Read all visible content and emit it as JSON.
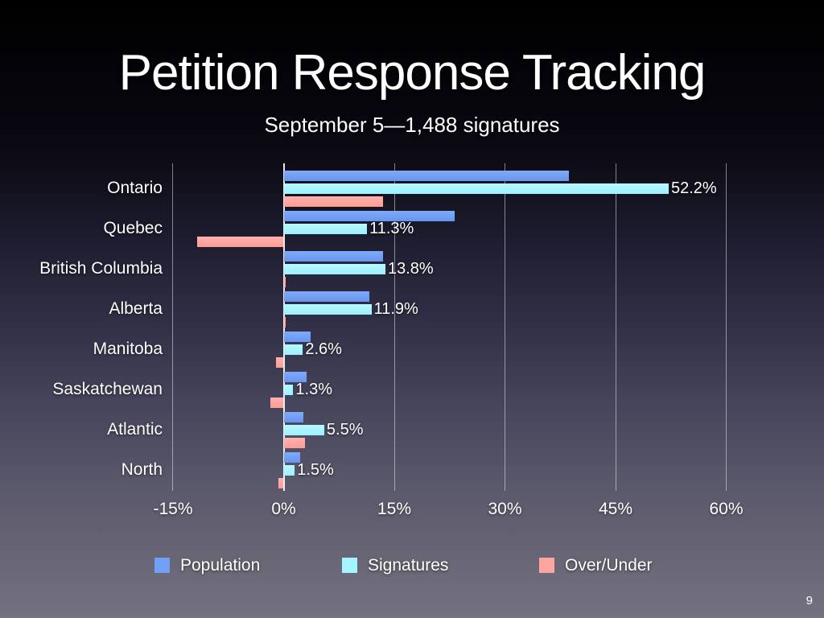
{
  "slide": {
    "title": "Petition Response Tracking",
    "subtitle": "September 5—1,488 signatures",
    "page_number": "9"
  },
  "chart_data": {
    "type": "bar",
    "orientation": "horizontal",
    "title": "Petition Response Tracking",
    "subtitle": "September 5—1,488 signatures",
    "categories": [
      "Ontario",
      "Quebec",
      "British Columbia",
      "Alberta",
      "Manitoba",
      "Saskatchewan",
      "Atlantic",
      "North"
    ],
    "series": [
      {
        "name": "Population",
        "color_top": "#7FAAF8",
        "color_bottom": "#6896EF",
        "legend_color": "#6FA0F6",
        "values": [
          38.7,
          23.2,
          13.5,
          11.6,
          3.6,
          3.1,
          2.7,
          2.2
        ]
      },
      {
        "name": "Signatures",
        "color_top": "#B6F9FF",
        "color_bottom": "#9DEFFD",
        "legend_color": "#A5F4FF",
        "values": [
          52.2,
          11.3,
          13.8,
          11.9,
          2.6,
          1.3,
          5.5,
          1.5
        ],
        "data_labels": [
          "52.2%",
          "11.3%",
          "13.8%",
          "11.9%",
          "2.6%",
          "1.3%",
          "5.5%",
          "1.5%"
        ]
      },
      {
        "name": "Over/Under",
        "color_top": "#FFB1AC",
        "color_bottom": "#FF9B96",
        "legend_color": "#FFA49F",
        "values": [
          13.5,
          -11.7,
          0.3,
          0.3,
          -1.0,
          -1.8,
          2.9,
          -0.7
        ]
      }
    ],
    "x_ticks": [
      {
        "value": -15,
        "label": "-15%"
      },
      {
        "value": 0,
        "label": "0%"
      },
      {
        "value": 15,
        "label": "15%"
      },
      {
        "value": 30,
        "label": "30%"
      },
      {
        "value": 45,
        "label": "45%"
      },
      {
        "value": 60,
        "label": "60%"
      }
    ],
    "xlim": [
      -15,
      60
    ],
    "grid": "vertical-only",
    "legend_position": "bottom"
  },
  "colors": {
    "text": "#FFFFFF",
    "gridline": "rgba(238,238,245,0.52)",
    "zero_axis": "rgba(250,250,253,0.92)",
    "background_top": "#000000",
    "background_bottom": "#747280"
  }
}
